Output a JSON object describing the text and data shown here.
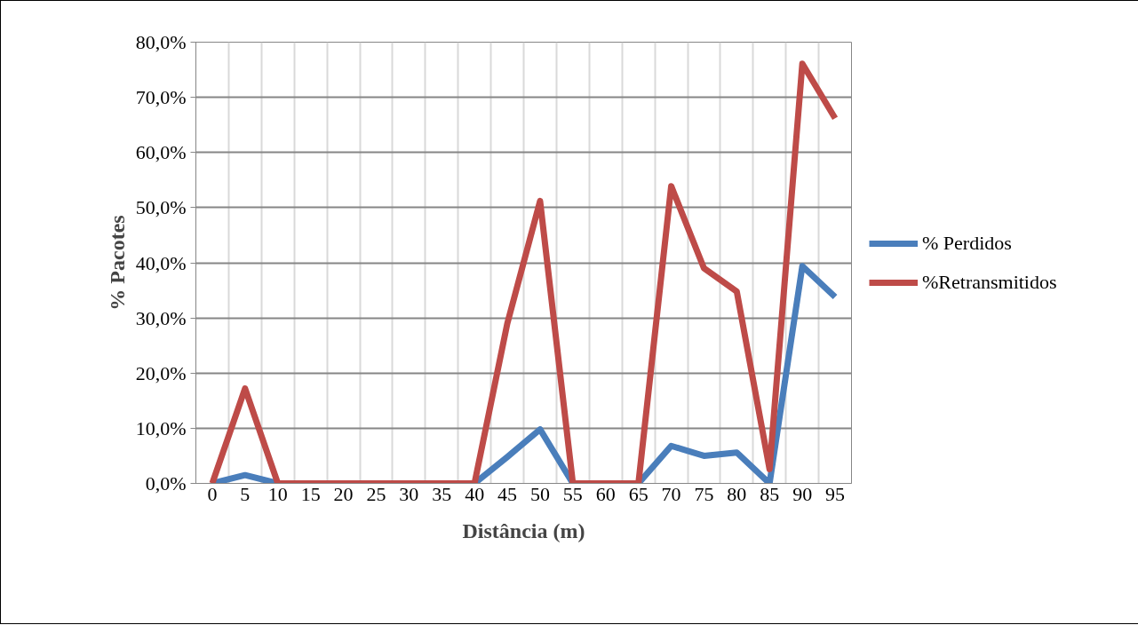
{
  "chart_data": {
    "type": "line",
    "xlabel": "Distância (m)",
    "ylabel": "% Pacotes",
    "categories": [
      "0",
      "5",
      "10",
      "15",
      "20",
      "25",
      "30",
      "35",
      "40",
      "45",
      "50",
      "55",
      "60",
      "65",
      "70",
      "75",
      "80",
      "85",
      "90",
      "95"
    ],
    "series": [
      {
        "name": "% Perdidos",
        "color": "#4a7ebb",
        "values": [
          0,
          1.5,
          0,
          0,
          0,
          0,
          0,
          0,
          0,
          4.8,
          9.8,
          0,
          0,
          0,
          6.8,
          5.0,
          5.6,
          0,
          39.4,
          33.8
        ]
      },
      {
        "name": "%Retransmitidos",
        "color": "#be4b48",
        "values": [
          0,
          17.2,
          0,
          0,
          0,
          0,
          0,
          0,
          0,
          29.0,
          51.2,
          0,
          0,
          0,
          53.9,
          39.0,
          34.8,
          2.6,
          76.1,
          66.2
        ]
      }
    ],
    "ylim": [
      0,
      80
    ],
    "yticks": [
      {
        "value": 0,
        "label": "0,0%"
      },
      {
        "value": 10,
        "label": "10,0%"
      },
      {
        "value": 20,
        "label": "20,0%"
      },
      {
        "value": 30,
        "label": "30,0%"
      },
      {
        "value": 40,
        "label": "40,0%"
      },
      {
        "value": 50,
        "label": "50,0%"
      },
      {
        "value": 60,
        "label": "60,0%"
      },
      {
        "value": 70,
        "label": "70,0%"
      },
      {
        "value": 80,
        "label": "80,0%"
      }
    ],
    "grid": true,
    "legend": "right",
    "marker": "none",
    "line_style": "solid"
  }
}
